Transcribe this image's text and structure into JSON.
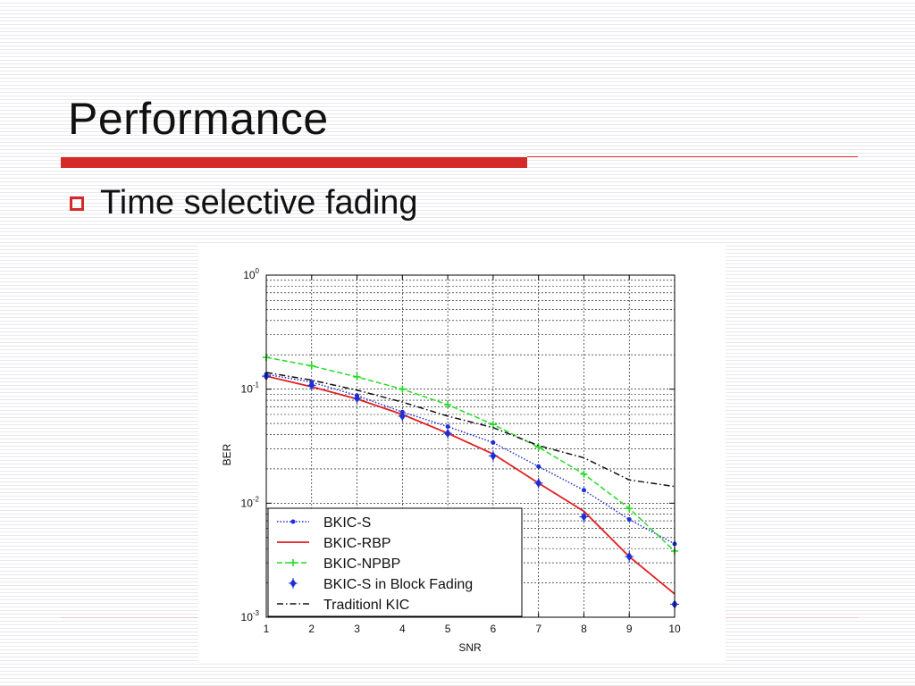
{
  "slide": {
    "title": "Performance",
    "bullet": "Time selective fading",
    "accent_color": "#d42a28"
  },
  "chart_data": {
    "type": "line",
    "xlabel": "SNR",
    "ylabel": "BER",
    "yscale": "log",
    "xlim": [
      1,
      10
    ],
    "ylim": [
      0.001,
      1
    ],
    "grid": true,
    "legend_position": "bottom-left",
    "x": [
      1,
      2,
      3,
      4,
      5,
      6,
      7,
      8,
      9,
      10
    ],
    "x_ticks": [
      "1",
      "2",
      "3",
      "4",
      "5",
      "6",
      "7",
      "8",
      "9",
      "10"
    ],
    "y_ticks": [
      {
        "base": "10",
        "exp": "0",
        "value": 1
      },
      {
        "base": "10",
        "exp": "-1",
        "value": 0.1
      },
      {
        "base": "10",
        "exp": "-2",
        "value": 0.01
      },
      {
        "base": "10",
        "exp": "-3",
        "value": 0.001
      }
    ],
    "series": [
      {
        "name": "BKIC-S",
        "color": "#1f2fd6",
        "style": "dotted",
        "marker": "dot",
        "values": [
          0.135,
          0.115,
          0.088,
          0.063,
          0.047,
          0.034,
          0.021,
          0.013,
          0.0072,
          0.0044
        ]
      },
      {
        "name": "BKIC-RBP",
        "color": "#e02020",
        "style": "solid",
        "marker": "none",
        "values": [
          0.13,
          0.105,
          0.082,
          0.06,
          0.041,
          0.027,
          0.015,
          0.0085,
          0.0034,
          0.0016
        ]
      },
      {
        "name": "BKIC-NPBP",
        "color": "#22dd22",
        "style": "dashed",
        "marker": "plus",
        "values": [
          0.19,
          0.16,
          0.128,
          0.1,
          0.073,
          0.049,
          0.031,
          0.018,
          0.009,
          0.0038
        ]
      },
      {
        "name": "BKIC-S in Block Fading",
        "color": "#1f2fd6",
        "style": "none",
        "marker": "diamond-plus",
        "values": [
          0.13,
          0.108,
          0.083,
          0.058,
          0.041,
          0.026,
          0.015,
          0.0076,
          0.0034,
          0.0013
        ]
      },
      {
        "name": "Traditionl KIC",
        "color": "#111111",
        "style": "dashdot",
        "marker": "none",
        "values": [
          0.14,
          0.12,
          0.098,
          0.077,
          0.058,
          0.046,
          0.032,
          0.025,
          0.016,
          0.014
        ]
      }
    ]
  }
}
